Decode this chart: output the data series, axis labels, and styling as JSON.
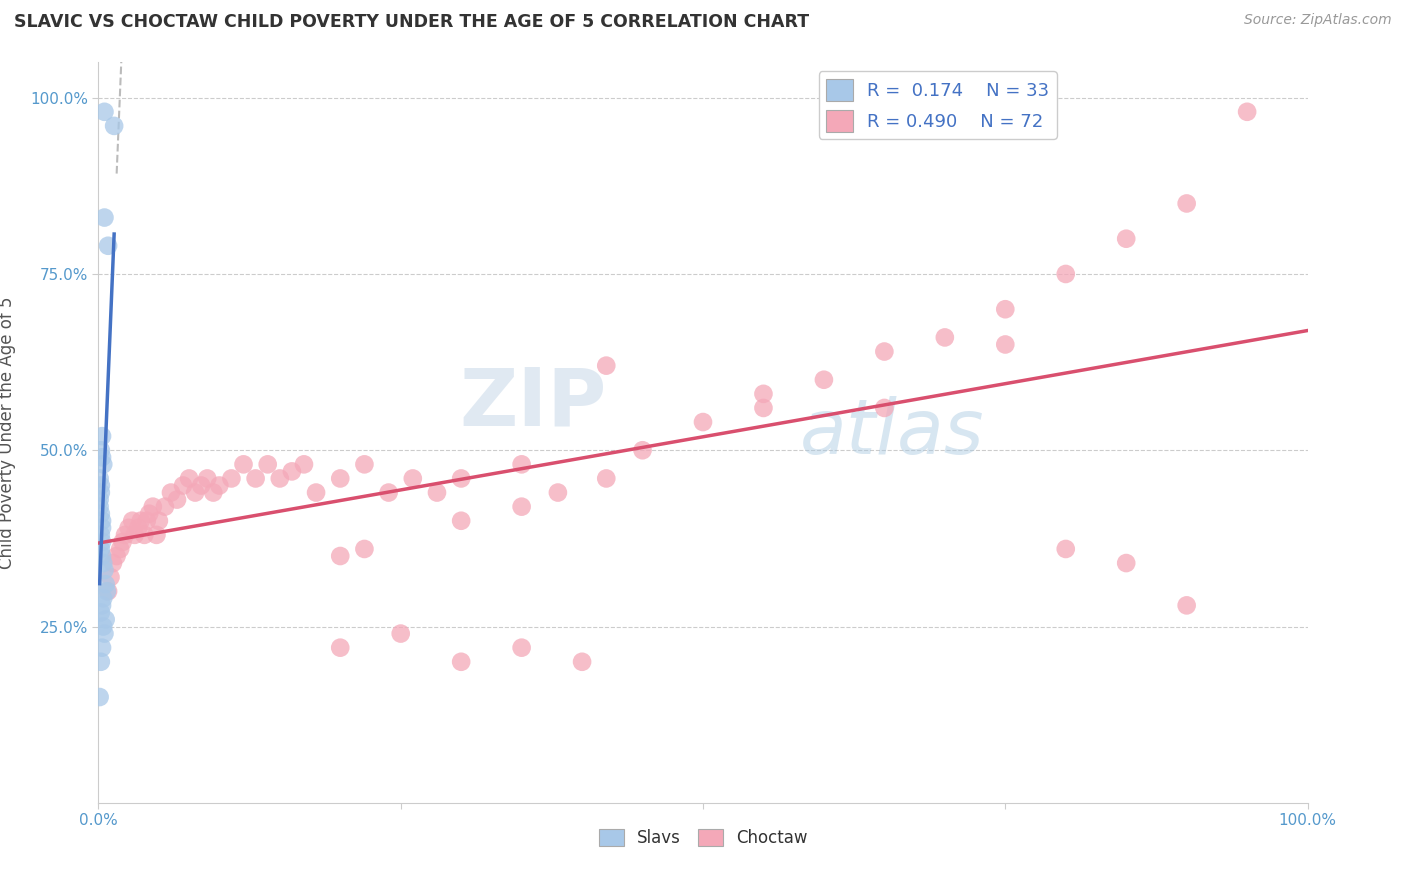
{
  "title": "SLAVIC VS CHOCTAW CHILD POVERTY UNDER THE AGE OF 5 CORRELATION CHART",
  "source": "Source: ZipAtlas.com",
  "ylabel": "Child Poverty Under the Age of 5",
  "xlim": [
    0,
    1
  ],
  "ylim": [
    0,
    1
  ],
  "x_ticks": [
    0.0,
    0.25,
    0.5,
    0.75,
    1.0
  ],
  "x_tick_labels": [
    "0.0%",
    "",
    "",
    "",
    "100.0%"
  ],
  "y_ticks": [
    0.25,
    0.5,
    0.75,
    1.0
  ],
  "y_tick_labels": [
    "25.0%",
    "50.0%",
    "75.0%",
    "100.0%"
  ],
  "legend_R_slavs": "0.174",
  "legend_N_slavs": "33",
  "legend_R_choctaw": "0.490",
  "legend_N_choctaw": "72",
  "slavs_color": "#a8c8e8",
  "choctaw_color": "#f4a8b8",
  "slavs_line_color": "#4472c4",
  "choctaw_line_color": "#d94f6e",
  "dash_line_color": "#aaaaaa",
  "watermark_zip": "ZIP",
  "watermark_atlas": "atlas",
  "background_color": "#ffffff",
  "slavs_scatter_x": [
    0.005,
    0.013,
    0.005,
    0.008,
    0.003,
    0.002,
    0.003,
    0.004,
    0.001,
    0.002,
    0.002,
    0.001,
    0.001,
    0.002,
    0.003,
    0.003,
    0.002,
    0.003,
    0.002,
    0.003,
    0.004,
    0.005,
    0.006,
    0.007,
    0.004,
    0.003,
    0.002,
    0.006,
    0.004,
    0.005,
    0.003,
    0.002,
    0.001
  ],
  "slavs_scatter_y": [
    0.98,
    0.96,
    0.83,
    0.79,
    0.52,
    0.5,
    0.49,
    0.48,
    0.46,
    0.45,
    0.44,
    0.43,
    0.42,
    0.41,
    0.4,
    0.39,
    0.38,
    0.37,
    0.36,
    0.35,
    0.34,
    0.33,
    0.31,
    0.3,
    0.29,
    0.28,
    0.27,
    0.26,
    0.25,
    0.24,
    0.22,
    0.2,
    0.15
  ],
  "choctaw_scatter_x": [
    0.008,
    0.01,
    0.012,
    0.015,
    0.018,
    0.02,
    0.022,
    0.025,
    0.028,
    0.03,
    0.033,
    0.035,
    0.038,
    0.04,
    0.042,
    0.045,
    0.048,
    0.05,
    0.055,
    0.06,
    0.065,
    0.07,
    0.075,
    0.08,
    0.085,
    0.09,
    0.095,
    0.1,
    0.11,
    0.12,
    0.13,
    0.14,
    0.15,
    0.16,
    0.17,
    0.18,
    0.2,
    0.22,
    0.24,
    0.26,
    0.28,
    0.3,
    0.35,
    0.38,
    0.42,
    0.45,
    0.5,
    0.55,
    0.6,
    0.65,
    0.7,
    0.75,
    0.8,
    0.85,
    0.9,
    0.95,
    0.2,
    0.22,
    0.3,
    0.35,
    0.42,
    0.55,
    0.65,
    0.75,
    0.8,
    0.85,
    0.9,
    0.2,
    0.25,
    0.3,
    0.35,
    0.4
  ],
  "choctaw_scatter_y": [
    0.3,
    0.32,
    0.34,
    0.35,
    0.36,
    0.37,
    0.38,
    0.39,
    0.4,
    0.38,
    0.39,
    0.4,
    0.38,
    0.4,
    0.41,
    0.42,
    0.38,
    0.4,
    0.42,
    0.44,
    0.43,
    0.45,
    0.46,
    0.44,
    0.45,
    0.46,
    0.44,
    0.45,
    0.46,
    0.48,
    0.46,
    0.48,
    0.46,
    0.47,
    0.48,
    0.44,
    0.46,
    0.48,
    0.44,
    0.46,
    0.44,
    0.46,
    0.48,
    0.44,
    0.46,
    0.5,
    0.54,
    0.56,
    0.6,
    0.64,
    0.66,
    0.7,
    0.75,
    0.8,
    0.85,
    0.98,
    0.35,
    0.36,
    0.4,
    0.42,
    0.62,
    0.58,
    0.56,
    0.65,
    0.36,
    0.34,
    0.28,
    0.22,
    0.24,
    0.2,
    0.22,
    0.2
  ]
}
